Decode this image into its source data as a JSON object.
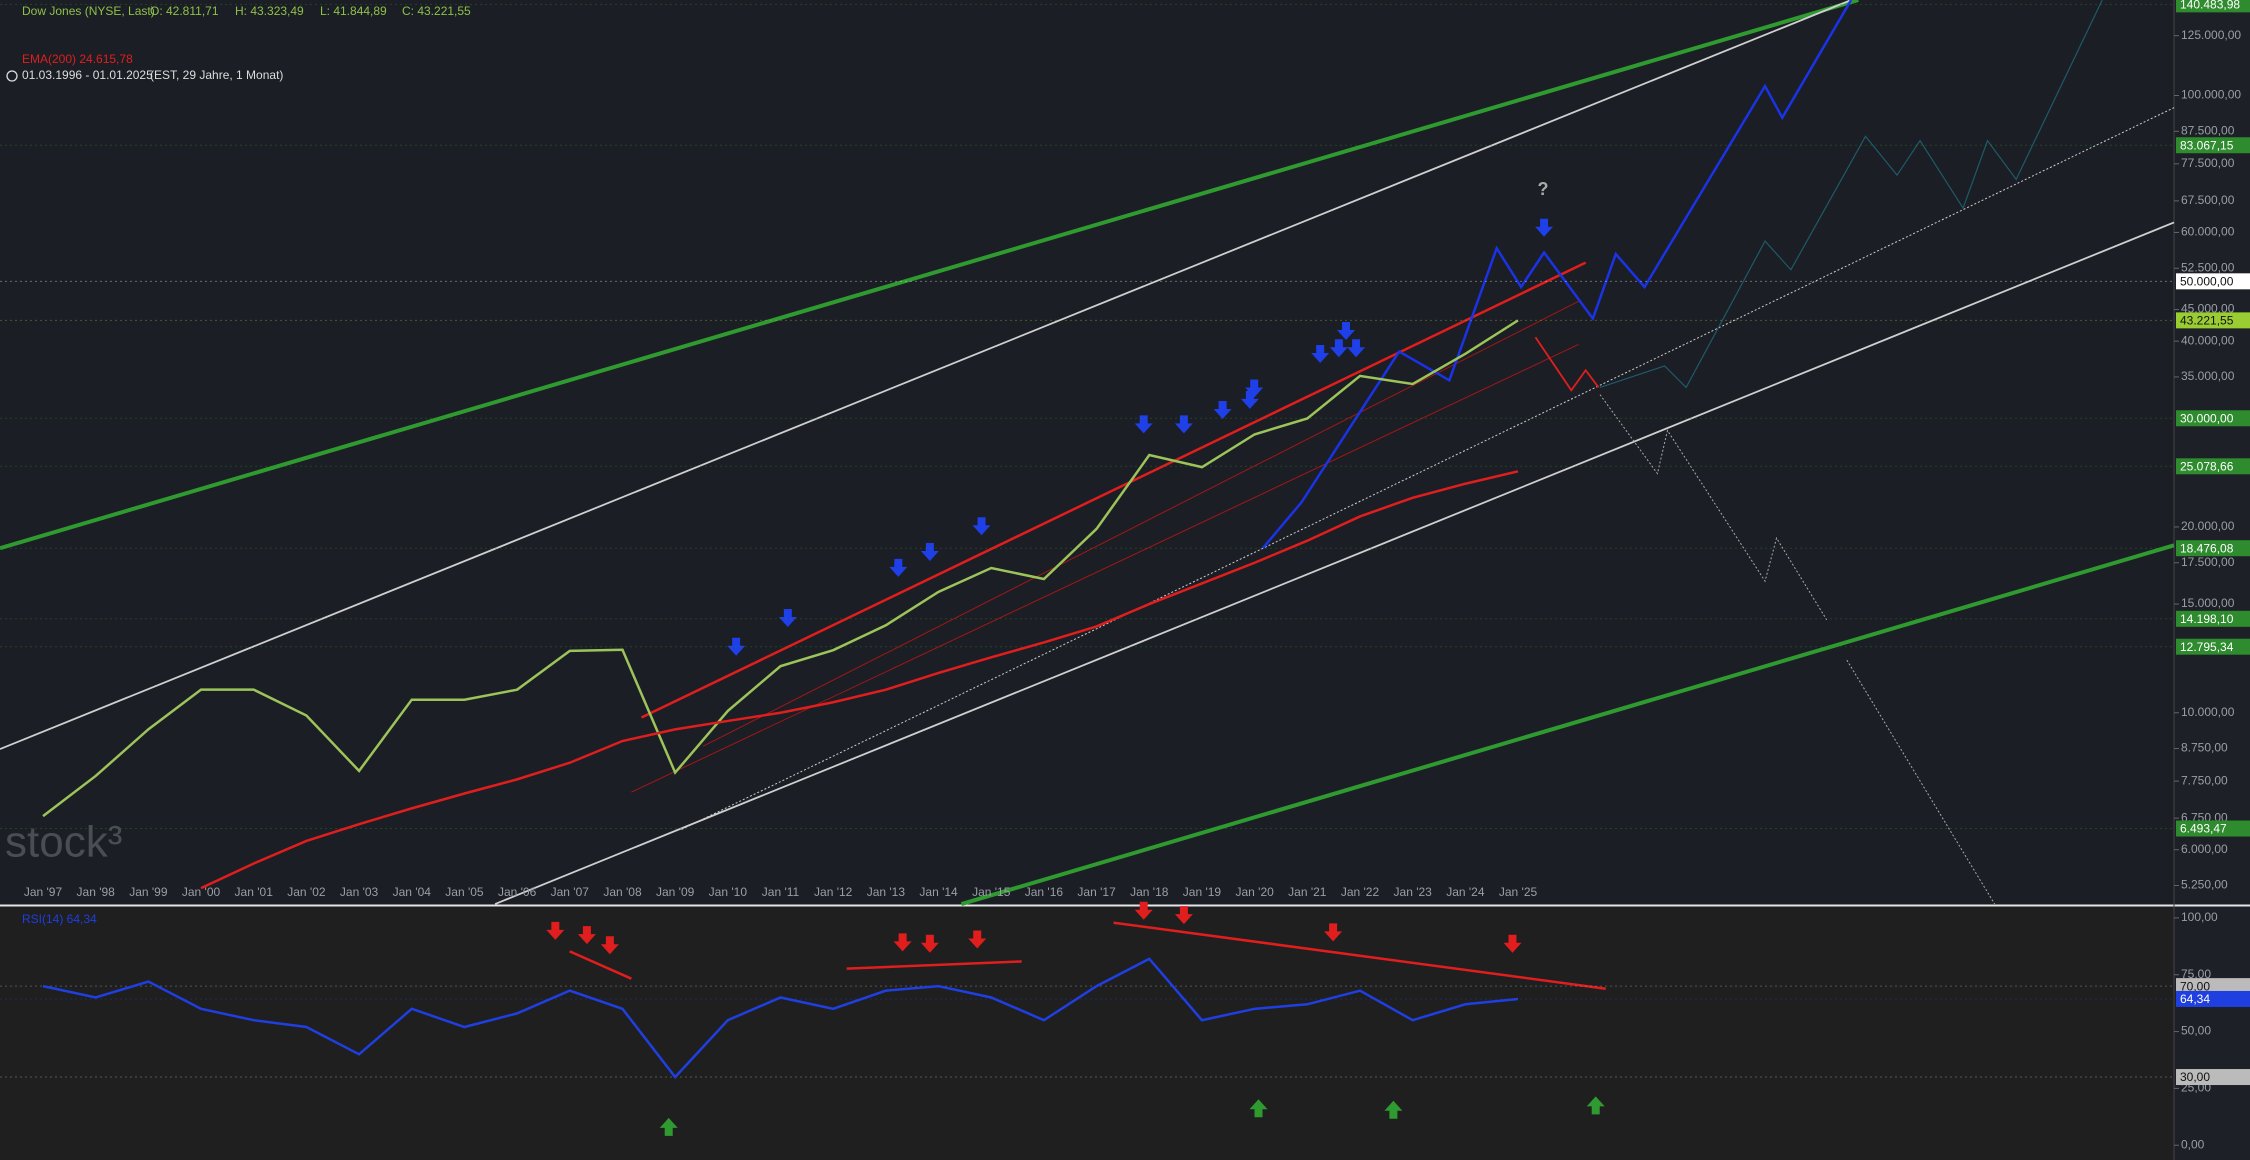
{
  "header": {
    "symbol": "Dow Jones (NYSE, Last)",
    "open": "O: 42.811,71",
    "high": "H: 43.323,49",
    "low": "L: 41.844,89",
    "close": "C: 43.221,55",
    "indicator": "EMA(200)  24.615,78",
    "range": "01.03.1996 - 01.01.2025",
    "range_info": "(EST, 29 Jahre, 1 Monat)",
    "watermark": "stock³"
  },
  "chart_data": [
    {
      "type": "line",
      "log_scale": true,
      "categories": [
        "Jan '97",
        "Jan '98",
        "Jan '99",
        "Jan '00",
        "Jan '01",
        "Jan '02",
        "Jan '03",
        "Jan '04",
        "Jan '05",
        "Jan '06",
        "Jan '07",
        "Jan '08",
        "Jan '09",
        "Jan '10",
        "Jan '11",
        "Jan '12",
        "Jan '13",
        "Jan '14",
        "Jan '15",
        "Jan '16",
        "Jan '17",
        "Jan '18",
        "Jan '19",
        "Jan '20",
        "Jan '21",
        "Jan '22",
        "Jan '23",
        "Jan '24",
        "Jan '25"
      ],
      "series": [
        {
          "name": "Dow Jones (NYSE, Last)",
          "color": "#9cc45a",
          "values": [
            6800,
            7900,
            9400,
            10900,
            10900,
            9900,
            8050,
            10500,
            10500,
            10900,
            12600,
            12650,
            8000,
            10070,
            11900,
            12630,
            13860,
            15700,
            17160,
            16470,
            19860,
            26150,
            25000,
            28250,
            29980,
            35130,
            34090,
            38150,
            43221.55
          ]
        },
        {
          "name": "EMA(200)",
          "color": "#e01e1e",
          "values": [
            null,
            null,
            null,
            5200,
            5700,
            6200,
            6600,
            7000,
            7400,
            7800,
            8300,
            9000,
            9400,
            9700,
            10000,
            10400,
            10900,
            11600,
            12300,
            13000,
            13800,
            15000,
            16200,
            17500,
            19000,
            20800,
            22300,
            23500,
            24615.78
          ]
        }
      ],
      "annotations": [
        "?"
      ],
      "ylim": [
        4900,
        142800
      ],
      "yticks": [
        {
          "value": 5250,
          "label": "5.250,00"
        },
        {
          "value": 6000,
          "label": "6.000,00"
        },
        {
          "value": 6750,
          "label": "6.750,00"
        },
        {
          "value": 7750,
          "label": "7.750,00"
        },
        {
          "value": 8750,
          "label": "8.750,00"
        },
        {
          "value": 10000,
          "label": "10.000,00"
        },
        {
          "value": 15000,
          "label": "15.000,00"
        },
        {
          "value": 17500,
          "label": "17.500,00"
        },
        {
          "value": 20000,
          "label": "20.000,00"
        },
        {
          "value": 35000,
          "label": "35.000,00"
        },
        {
          "value": 40000,
          "label": "40.000,00"
        },
        {
          "value": 45000,
          "label": "45.000,00"
        },
        {
          "value": 52500,
          "label": "52.500,00"
        },
        {
          "value": 60000,
          "label": "60.000,00"
        },
        {
          "value": 67500,
          "label": "67.500,00"
        },
        {
          "value": 77500,
          "label": "77.500,00"
        },
        {
          "value": 87500,
          "label": "87.500,00"
        },
        {
          "value": 100000,
          "label": "100.000,00"
        },
        {
          "value": 125000,
          "label": "125.000,00"
        }
      ],
      "levels": [
        {
          "value": 140483.98,
          "label": "140.483,98",
          "color": "#2e8b2e"
        },
        {
          "value": 83067.15,
          "label": "83.067,15",
          "color": "#2e8b2e"
        },
        {
          "value": 50000,
          "label": "50.000,00",
          "color": "#ffffff"
        },
        {
          "value": 43221.55,
          "label": "43.221,55",
          "color": "#9acd32"
        },
        {
          "value": 30000,
          "label": "30.000,00",
          "color": "#2e8b2e"
        },
        {
          "value": 25078.66,
          "label": "25.078,66",
          "color": "#2e8b2e"
        },
        {
          "value": 18476.08,
          "label": "18.476,08",
          "color": "#2e8b2e"
        },
        {
          "value": 14198.1,
          "label": "14.198,10",
          "color": "#2e8b2e"
        },
        {
          "value": 12795.34,
          "label": "12.795,34",
          "color": "#2e8b2e"
        },
        {
          "value": 6493.47,
          "label": "6.493,47",
          "color": "#2e8b2e"
        }
      ]
    },
    {
      "type": "line",
      "title": "RSI(14)  64,34",
      "series": [
        {
          "name": "RSI(14)",
          "color": "#1f3fe0",
          "values": [
            70,
            65,
            72,
            60,
            55,
            52,
            40,
            60,
            52,
            58,
            68,
            60,
            30,
            55,
            65,
            60,
            68,
            70,
            65,
            55,
            70,
            82,
            55,
            60,
            62,
            68,
            55,
            62,
            64.34
          ]
        }
      ],
      "ylim": [
        -6.5,
        104.8
      ],
      "yticks": [
        {
          "value": 0,
          "label": "0,00"
        },
        {
          "value": 25,
          "label": "25,00"
        },
        {
          "value": 50,
          "label": "50,00"
        },
        {
          "value": 75,
          "label": "75,00"
        },
        {
          "value": 100,
          "label": "100,00"
        }
      ],
      "levels": [
        {
          "value": 70,
          "label": "70,00",
          "color": "#bbbbbb"
        },
        {
          "value": 64.34,
          "label": "64,34",
          "color": "#1f3fe0"
        },
        {
          "value": 30,
          "label": "30,00",
          "color": "#bbbbbb"
        }
      ]
    }
  ]
}
